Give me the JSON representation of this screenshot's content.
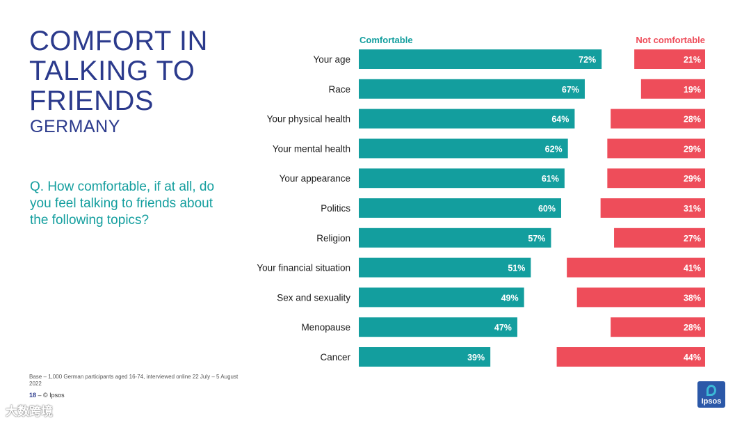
{
  "title": "COMFORT IN\nTALKING TO\nFRIENDS",
  "subtitle": "GERMANY",
  "question": "Q. How comfortable, if at all, do you feel talking to friends about the following topics?",
  "base_note": "Base – 1,000 German participants aged 16-74, interviewed online 22 July – 5 August 2022",
  "footer": {
    "page": "18",
    "sep": " –  ",
    "copyright": "© Ipsos"
  },
  "logo_text": "Ipsos",
  "watermark": "大数跨境",
  "colors": {
    "comfortable": "#139e9e",
    "not_comfortable": "#ee4d5a",
    "title": "#2b3a8c"
  },
  "chart_data": {
    "type": "bar",
    "orientation": "horizontal-diverging",
    "legend": [
      "Comfortable",
      "Not comfortable"
    ],
    "categories": [
      "Your age",
      "Race",
      "Your physical health",
      "Your mental health",
      "Your appearance",
      "Politics",
      "Religion",
      "Your financial situation",
      "Sex and sexuality",
      "Menopause",
      "Cancer"
    ],
    "series": [
      {
        "name": "Comfortable",
        "values": [
          72,
          67,
          64,
          62,
          61,
          60,
          57,
          51,
          49,
          47,
          39
        ],
        "labels": [
          "72%",
          "67%",
          "64%",
          "62%",
          "61%",
          "60%",
          "57%",
          "51%",
          "49%",
          "47%",
          "39%"
        ]
      },
      {
        "name": "Not comfortable",
        "values": [
          21,
          19,
          28,
          29,
          29,
          31,
          27,
          41,
          38,
          28,
          44
        ],
        "labels": [
          "21%",
          "19%",
          "28%",
          "29%",
          "29%",
          "31%",
          "27%",
          "41%",
          "38%",
          "28%",
          "44%"
        ]
      }
    ],
    "xlim": [
      0,
      100
    ]
  }
}
